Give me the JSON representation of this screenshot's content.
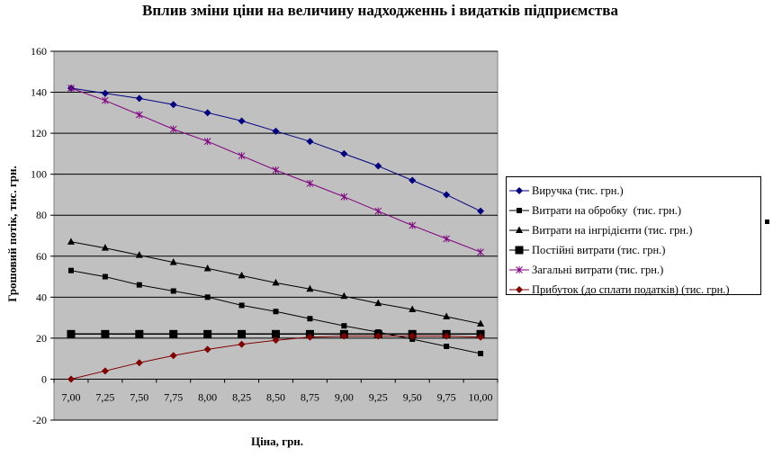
{
  "chart_data": {
    "type": "line",
    "title": "Вплив зміни ціни на величину надходженнь і видатків підприємства",
    "xlabel": "Ціна, грн.",
    "ylabel": "Грошовий потік, тис. грн.",
    "ylim": [
      -20,
      160
    ],
    "yticks": [
      -20,
      0,
      20,
      40,
      60,
      80,
      100,
      120,
      140,
      160
    ],
    "categories": [
      "7,00",
      "7,25",
      "7,50",
      "7,75",
      "8,00",
      "8,25",
      "8,50",
      "8,75",
      "9,00",
      "9,25",
      "9,50",
      "9,75",
      "10,00"
    ],
    "grid": true,
    "legend_position": "right",
    "series": [
      {
        "name": "Виручка (тис. грн.)",
        "color": "#000080",
        "marker": "diamond",
        "values": [
          142,
          139.5,
          137,
          134,
          130,
          126,
          121,
          116,
          110,
          104,
          97,
          90,
          82
        ]
      },
      {
        "name": "Витрати на обробку  (тис. грн.)",
        "color": "#000000",
        "marker": "square",
        "values": [
          53,
          50,
          46,
          43,
          40,
          36,
          33,
          29.5,
          26,
          23,
          19.5,
          16,
          12.5
        ]
      },
      {
        "name": "Витрати на інгрідієнти (тис. грн.)",
        "color": "#000000",
        "marker": "triangle",
        "values": [
          67,
          64,
          60.5,
          57,
          54,
          50.5,
          47,
          44,
          40.5,
          37,
          34,
          30.5,
          27
        ]
      },
      {
        "name": "Постійні витрати (тис. грн.)",
        "color": "#000000",
        "marker": "bigsquare",
        "values": [
          22,
          22,
          22,
          22,
          22,
          22,
          22,
          22,
          22,
          22,
          22,
          22,
          22
        ]
      },
      {
        "name": "Загальні витрати (тис. грн.)",
        "color": "#800080",
        "marker": "star",
        "values": [
          142,
          136,
          129,
          122,
          116,
          109,
          102,
          95.5,
          89,
          82,
          75,
          68.5,
          62
        ]
      },
      {
        "name": "Прибуток (до сплати податків) (тис. грн.)",
        "color": "#800000",
        "marker": "diamond",
        "values": [
          0,
          4,
          8,
          11.5,
          14.5,
          17,
          19,
          20.5,
          21,
          21,
          21,
          21,
          20.5
        ]
      }
    ]
  }
}
